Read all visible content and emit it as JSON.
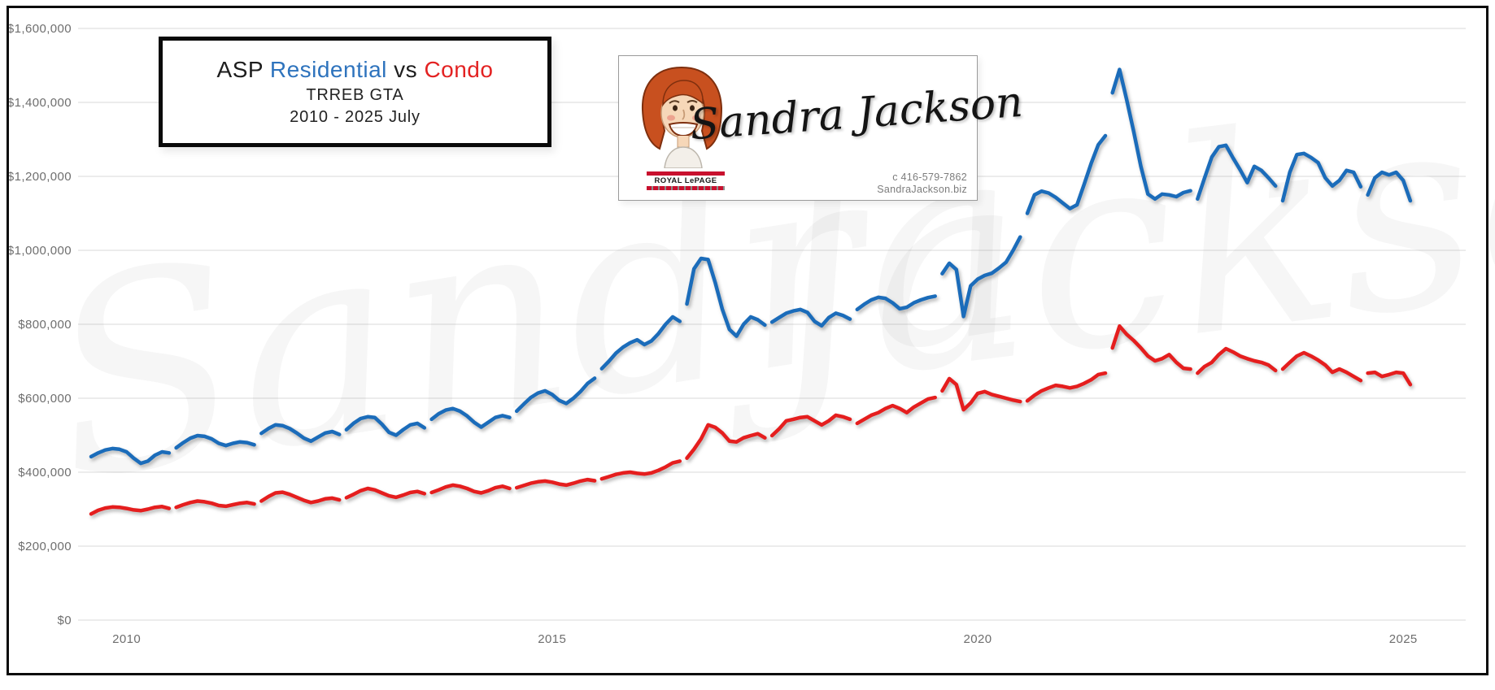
{
  "title": {
    "prefix": "ASP",
    "series1_label": "Residential",
    "vs": "vs",
    "series2_label": "Condo",
    "subtitle": "TRREB GTA",
    "period": "2010 - 2025 July"
  },
  "logo": {
    "signature": "Sandra Jackson",
    "phone": "c 416-579-7862",
    "website": "SandraJackson.biz",
    "brand": "ROYAL LePAGE"
  },
  "watermark": {
    "word1": "Sandra",
    "word2": "Jackson"
  },
  "colors": {
    "residential": "#1b6cba",
    "condo": "#e51e1e",
    "gridline": "#d9d9d9",
    "tick_text": "#6e6e6e",
    "frame": "#0a0a0a",
    "royal_lepage_red": "#c8102e"
  },
  "chart_data": {
    "type": "line",
    "title": "ASP Residential vs Condo",
    "subtitle": "TRREB GTA",
    "period_label": "2010 - 2025 July",
    "frequency": "monthly",
    "start": "2010-01",
    "end": "2025-07",
    "gap_between_years": true,
    "grid": true,
    "legend_position": "none (colors encoded in title)",
    "ylim": [
      0,
      1600000
    ],
    "y_ticks": [
      {
        "label": "$1,600,000",
        "value": 1600000
      },
      {
        "label": "$1,400,000",
        "value": 1400000
      },
      {
        "label": "$1,200,000",
        "value": 1200000
      },
      {
        "label": "$1,000,000",
        "value": 1000000
      },
      {
        "label": "$800,000",
        "value": 800000
      },
      {
        "label": "$600,000",
        "value": 600000
      },
      {
        "label": "$400,000",
        "value": 400000
      },
      {
        "label": "$200,000",
        "value": 200000
      },
      {
        "label": "$0",
        "value": 0
      }
    ],
    "x_ticks": [
      {
        "label": "2010",
        "year": 2010
      },
      {
        "label": "2015",
        "year": 2015
      },
      {
        "label": "2020",
        "year": 2020
      },
      {
        "label": "2025",
        "year": 2025
      }
    ],
    "series": [
      {
        "name": "Residential",
        "color": "#1b6cba",
        "values_by_year": {
          "2010": [
            442000,
            452000,
            460000,
            464000,
            462000,
            455000,
            438000,
            424000,
            430000,
            446000,
            455000,
            452000
          ],
          "2011": [
            466000,
            480000,
            492000,
            499000,
            497000,
            490000,
            478000,
            472000,
            478000,
            482000,
            480000,
            474000
          ],
          "2012": [
            505000,
            518000,
            528000,
            526000,
            518000,
            506000,
            492000,
            484000,
            495000,
            506000,
            510000,
            502000
          ],
          "2013": [
            515000,
            532000,
            545000,
            550000,
            548000,
            530000,
            508000,
            500000,
            515000,
            528000,
            532000,
            520000
          ],
          "2014": [
            543000,
            558000,
            568000,
            572000,
            565000,
            552000,
            535000,
            522000,
            535000,
            548000,
            553000,
            548000
          ],
          "2015": [
            565000,
            584000,
            602000,
            614000,
            620000,
            610000,
            594000,
            586000,
            600000,
            618000,
            640000,
            654000
          ],
          "2016": [
            680000,
            700000,
            722000,
            738000,
            750000,
            758000,
            745000,
            755000,
            775000,
            800000,
            820000,
            808000
          ],
          "2017": [
            855000,
            950000,
            978000,
            975000,
            912000,
            840000,
            786000,
            768000,
            800000,
            820000,
            812000,
            798000
          ],
          "2018": [
            806000,
            818000,
            830000,
            836000,
            840000,
            832000,
            808000,
            796000,
            818000,
            830000,
            824000,
            814000
          ],
          "2019": [
            840000,
            854000,
            866000,
            873000,
            870000,
            858000,
            842000,
            846000,
            858000,
            866000,
            872000,
            876000
          ],
          "2020": [
            937000,
            965000,
            948000,
            821000,
            904000,
            922000,
            932000,
            938000,
            952000,
            968000,
            1000000,
            1036000
          ],
          "2021": [
            1100000,
            1150000,
            1160000,
            1155000,
            1143000,
            1128000,
            1113000,
            1123000,
            1178000,
            1235000,
            1285000,
            1310000
          ],
          "2022": [
            1426000,
            1489000,
            1408000,
            1321000,
            1227000,
            1152000,
            1139000,
            1152000,
            1150000,
            1145000,
            1156000,
            1161000
          ],
          "2023": [
            1139000,
            1196000,
            1252000,
            1280000,
            1284000,
            1250000,
            1218000,
            1183000,
            1227000,
            1216000,
            1196000,
            1174000
          ],
          "2024": [
            1134000,
            1211000,
            1259000,
            1262000,
            1251000,
            1237000,
            1196000,
            1174000,
            1189000,
            1216000,
            1211000,
            1172000
          ],
          "2025": [
            1150000,
            1196000,
            1211000,
            1204000,
            1211000,
            1189000,
            1134000
          ]
        }
      },
      {
        "name": "Condo",
        "color": "#e51e1e",
        "values_by_year": {
          "2010": [
            287000,
            297000,
            303000,
            306000,
            305000,
            302000,
            298000,
            296000,
            300000,
            305000,
            307000,
            302000
          ],
          "2011": [
            305000,
            312000,
            318000,
            322000,
            320000,
            316000,
            310000,
            308000,
            312000,
            316000,
            318000,
            314000
          ],
          "2012": [
            322000,
            334000,
            344000,
            346000,
            340000,
            332000,
            324000,
            318000,
            322000,
            328000,
            330000,
            325000
          ],
          "2013": [
            331000,
            340000,
            350000,
            356000,
            352000,
            344000,
            336000,
            332000,
            338000,
            345000,
            348000,
            342000
          ],
          "2014": [
            345000,
            352000,
            360000,
            365000,
            362000,
            356000,
            348000,
            344000,
            350000,
            358000,
            362000,
            356000
          ],
          "2015": [
            358000,
            364000,
            370000,
            374000,
            376000,
            373000,
            368000,
            365000,
            370000,
            376000,
            380000,
            377000
          ],
          "2016": [
            382000,
            388000,
            394000,
            398000,
            400000,
            397000,
            395000,
            398000,
            405000,
            414000,
            425000,
            430000
          ],
          "2017": [
            438000,
            462000,
            490000,
            528000,
            521000,
            506000,
            484000,
            482000,
            493000,
            499000,
            504000,
            493000
          ],
          "2018": [
            499000,
            517000,
            539000,
            543000,
            548000,
            550000,
            539000,
            528000,
            539000,
            554000,
            550000,
            543000
          ],
          "2019": [
            532000,
            543000,
            554000,
            561000,
            572000,
            580000,
            572000,
            561000,
            576000,
            587000,
            598000,
            602000
          ],
          "2020": [
            620000,
            653000,
            637000,
            569000,
            587000,
            613000,
            618000,
            610000,
            605000,
            600000,
            595000,
            591000
          ],
          "2021": [
            593000,
            608000,
            620000,
            628000,
            635000,
            632000,
            628000,
            632000,
            640000,
            650000,
            664000,
            668000
          ],
          "2022": [
            736000,
            795000,
            773000,
            756000,
            736000,
            714000,
            701000,
            707000,
            718000,
            697000,
            681000,
            679000
          ],
          "2023": [
            668000,
            686000,
            697000,
            718000,
            734000,
            725000,
            714000,
            707000,
            701000,
            697000,
            690000,
            675000
          ],
          "2024": [
            679000,
            697000,
            714000,
            723000,
            714000,
            703000,
            690000,
            670000,
            679000,
            670000,
            659000,
            648000
          ],
          "2025": [
            668000,
            670000,
            659000,
            664000,
            670000,
            668000,
            637000
          ]
        }
      }
    ]
  }
}
